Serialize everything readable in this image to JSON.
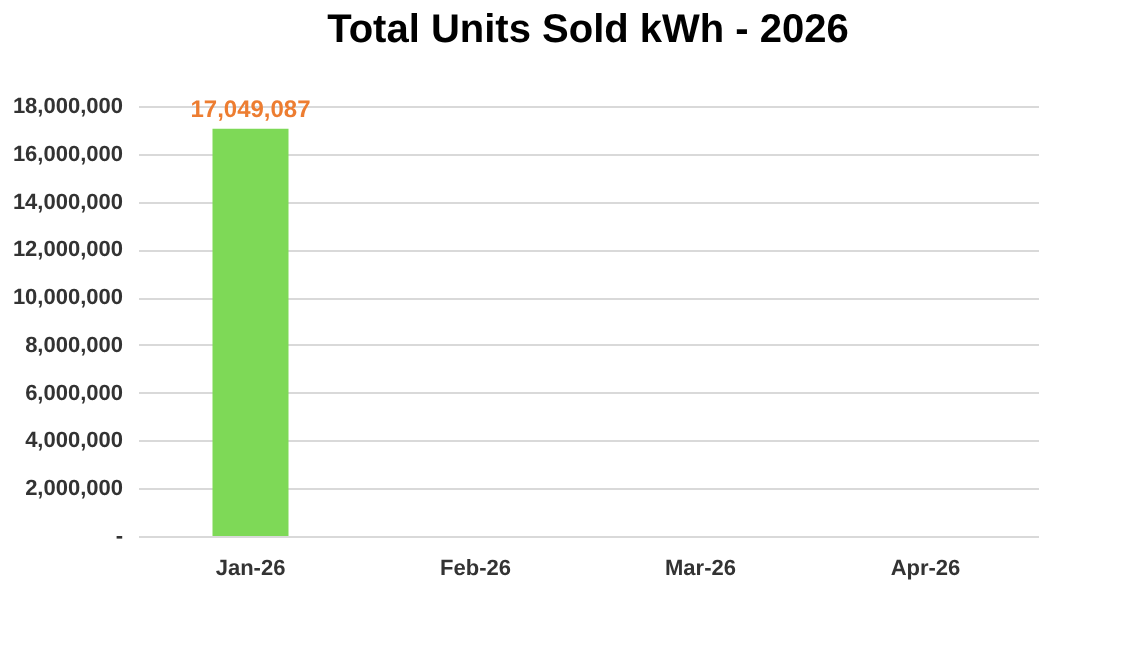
{
  "chart_data": {
    "type": "bar",
    "title": "Total Units Sold kWh - 2026",
    "categories": [
      "Jan-26",
      "Feb-26",
      "Mar-26",
      "Apr-26"
    ],
    "values": [
      17049087,
      0,
      0,
      0
    ],
    "value_labels": [
      "17,049,087",
      null,
      null,
      null
    ],
    "color": "#7ed957",
    "ylim": [
      0,
      18000000
    ],
    "yticks": [
      {
        "value": 0,
        "label": "-"
      },
      {
        "value": 2000000,
        "label": "2,000,000"
      },
      {
        "value": 4000000,
        "label": "4,000,000"
      },
      {
        "value": 6000000,
        "label": "6,000,000"
      },
      {
        "value": 8000000,
        "label": "8,000,000"
      },
      {
        "value": 10000000,
        "label": "10,000,000"
      },
      {
        "value": 12000000,
        "label": "12,000,000"
      },
      {
        "value": 14000000,
        "label": "14,000,000"
      },
      {
        "value": 16000000,
        "label": "16,000,000"
      },
      {
        "value": 18000000,
        "label": "18,000,000"
      }
    ],
    "grid": "y"
  }
}
